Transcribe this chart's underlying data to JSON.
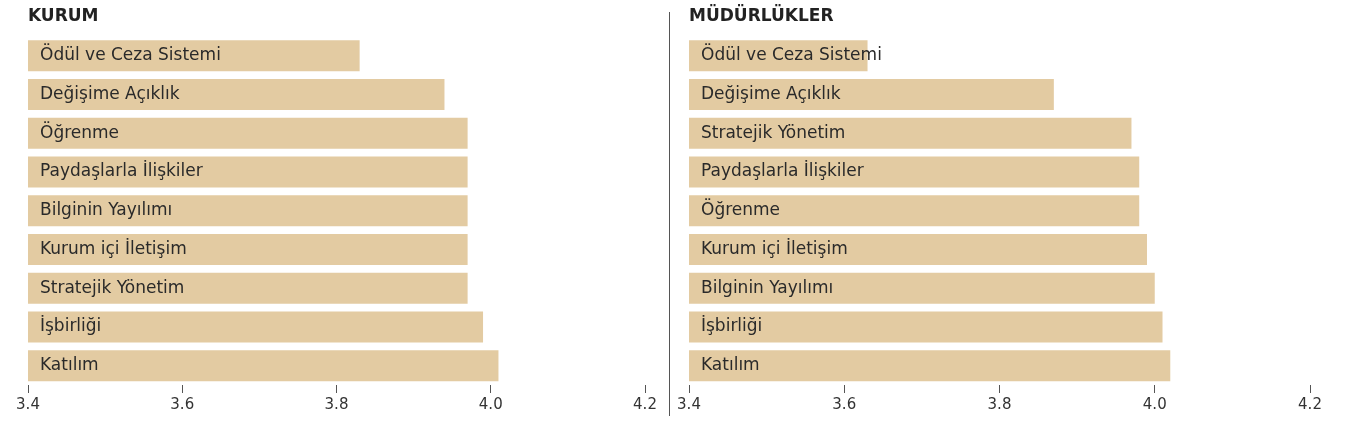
{
  "chart_data": [
    {
      "type": "bar",
      "orientation": "horizontal",
      "title": "KURUM",
      "categories": [
        "Ödül ve Ceza Sistemi",
        "Değişime Açıklık",
        "Öğrenme",
        "Paydaşlarla İlişkiler",
        "Bilginin Yayılımı",
        "Kurum içi İletişim",
        "Stratejik Yönetim",
        "İşbirliği",
        "Katılım"
      ],
      "values": [
        3.83,
        3.94,
        3.97,
        3.97,
        3.97,
        3.97,
        3.97,
        3.99,
        4.01
      ],
      "color": "#e3cba2",
      "xlim": [
        3.4,
        4.2
      ],
      "xticks": [
        3.4,
        3.6,
        3.8,
        {
          "value": 4,
          "label": "4.0"
        },
        4.2
      ],
      "grid": false,
      "legend": false
    },
    {
      "type": "bar",
      "orientation": "horizontal",
      "title": "MÜDÜRLÜKLER",
      "categories": [
        "Ödül ve Ceza Sistemi",
        "Değişime Açıklık",
        "Stratejik Yönetim",
        "Paydaşlarla İlişkiler",
        "Öğrenme",
        "Kurum içi İletişim",
        "Bilginin Yayılımı",
        "İşbirliği",
        "Katılım"
      ],
      "values": [
        3.63,
        3.87,
        3.97,
        3.98,
        3.98,
        3.99,
        4.0,
        4.01,
        4.02
      ],
      "color": "#e3cba2",
      "xlim": [
        3.4,
        4.2
      ],
      "xticks": [
        3.4,
        3.6,
        3.8,
        {
          "value": 4,
          "label": "4.0"
        },
        4.2
      ],
      "grid": false,
      "legend": false
    }
  ]
}
